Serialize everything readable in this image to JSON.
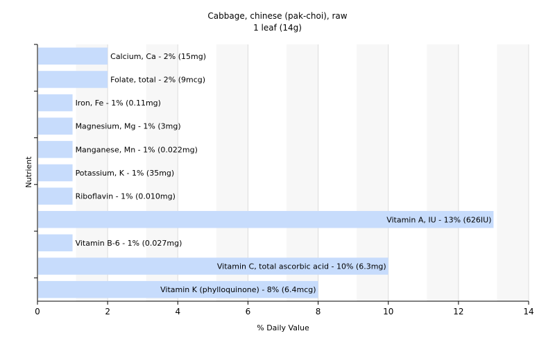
{
  "chart_data": {
    "type": "bar",
    "orientation": "horizontal",
    "title": "Cabbage, chinese (pak-choi), raw",
    "subtitle": "1 leaf (14g)",
    "xlabel": "% Daily Value",
    "ylabel": "Nutrient",
    "xlim": [
      0,
      14
    ],
    "xticks": [
      0,
      2,
      4,
      6,
      8,
      10,
      12,
      14
    ],
    "grid": true,
    "bar_color": "#c7dcfc",
    "grid_color": "#dcdcdc",
    "categories": [
      "Calcium, Ca",
      "Folate, total",
      "Iron, Fe",
      "Magnesium, Mg",
      "Manganese, Mn",
      "Potassium, K",
      "Riboflavin",
      "Vitamin A, IU",
      "Vitamin B-6",
      "Vitamin C, total ascorbic acid",
      "Vitamin K (phylloquinone)"
    ],
    "values": [
      2,
      2,
      1,
      1,
      1,
      1,
      1,
      13,
      1,
      10,
      8
    ],
    "labels": [
      "Calcium, Ca - 2% (15mg)",
      "Folate, total - 2% (9mcg)",
      "Iron, Fe - 1% (0.11mg)",
      "Magnesium, Mg - 1% (3mg)",
      "Manganese, Mn - 1% (0.022mg)",
      "Potassium, K - 1% (35mg)",
      "Riboflavin - 1% (0.010mg)",
      "Vitamin A, IU - 13% (626IU)",
      "Vitamin B-6 - 1% (0.027mg)",
      "Vitamin C, total ascorbic acid - 10% (6.3mg)",
      "Vitamin K (phylloquinone) - 8% (6.4mcg)"
    ]
  }
}
